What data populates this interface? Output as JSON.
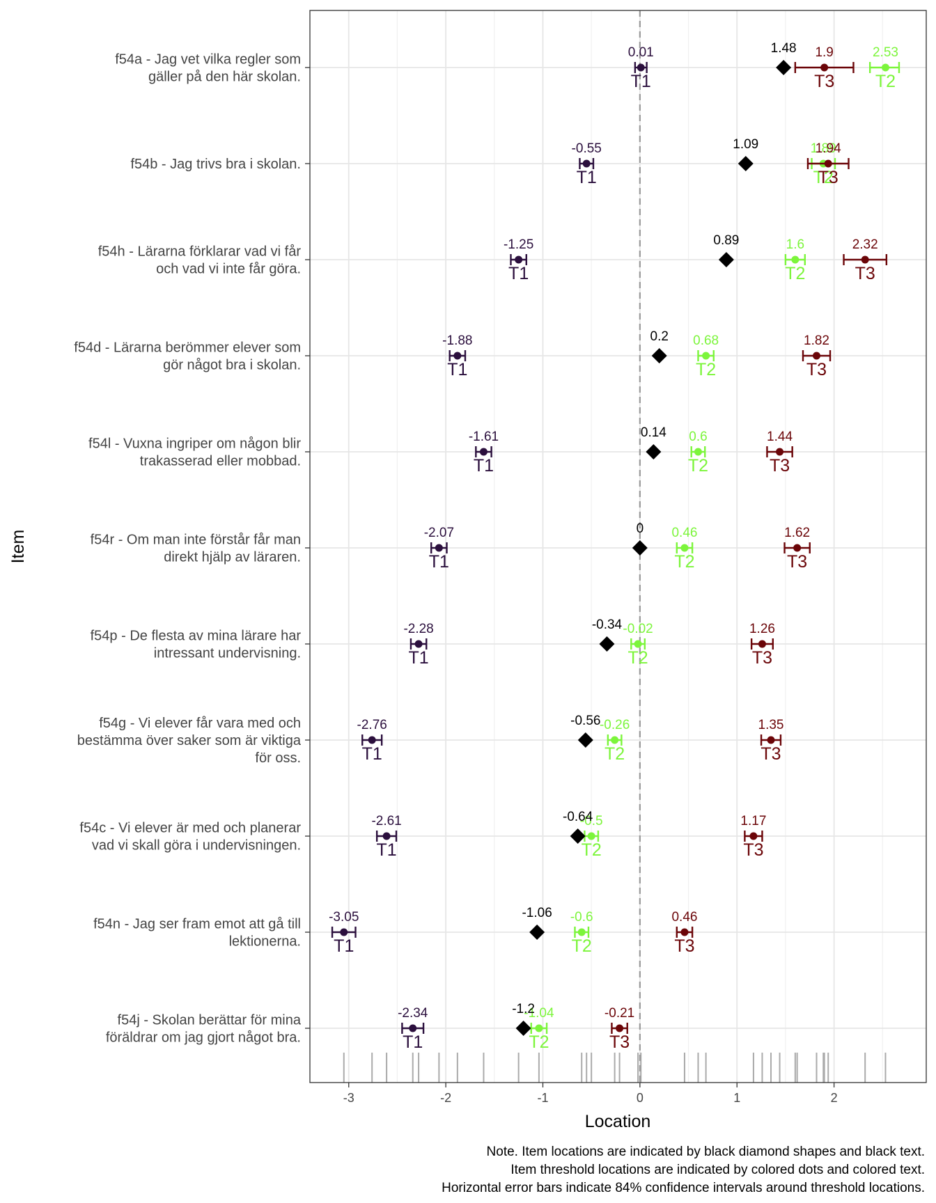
{
  "chart_data": {
    "type": "scatter",
    "xlabel": "Location",
    "ylabel": "Item",
    "xlim": [
      -3.4,
      2.95
    ],
    "x_ticks": [
      -3,
      -2,
      -1,
      0,
      1,
      2
    ],
    "grid": true,
    "reference_line": 0,
    "colors": {
      "T1": "#2b0f3d",
      "T2": "#7cf53b",
      "T3": "#6b0508",
      "item": "#000000"
    },
    "items": [
      {
        "label": [
          "f54a - Jag vet vilka regler som",
          "gäller på den här skolan."
        ],
        "location": 1.48,
        "thresholds": [
          {
            "name": "T1",
            "value": 0.01,
            "ci": [
              -0.05,
              0.07
            ]
          },
          {
            "name": "T2",
            "value": 2.53,
            "ci": [
              2.37,
              2.67
            ]
          },
          {
            "name": "T3",
            "value": 1.9,
            "ci": [
              1.6,
              2.2
            ]
          }
        ]
      },
      {
        "label": [
          "f54b - Jag trivs bra i skolan."
        ],
        "location": 1.09,
        "thresholds": [
          {
            "name": "T1",
            "value": -0.55,
            "ci": [
              -0.62,
              -0.48
            ]
          },
          {
            "name": "T2",
            "value": 1.89,
            "ci": [
              1.77,
              2.01
            ]
          },
          {
            "name": "T3",
            "value": 1.94,
            "ci": [
              1.73,
              2.15
            ]
          }
        ]
      },
      {
        "label": [
          "f54h - Lärarna förklarar vad vi får",
          "och vad vi inte får göra."
        ],
        "location": 0.89,
        "thresholds": [
          {
            "name": "T1",
            "value": -1.25,
            "ci": [
              -1.33,
              -1.17
            ]
          },
          {
            "name": "T2",
            "value": 1.6,
            "ci": [
              1.5,
              1.7
            ]
          },
          {
            "name": "T3",
            "value": 2.32,
            "ci": [
              2.1,
              2.54
            ]
          }
        ]
      },
      {
        "label": [
          "f54d - Lärarna berömmer elever som",
          "gör något bra i skolan."
        ],
        "location": 0.2,
        "thresholds": [
          {
            "name": "T1",
            "value": -1.88,
            "ci": [
              -1.96,
              -1.8
            ]
          },
          {
            "name": "T2",
            "value": 0.68,
            "ci": [
              0.6,
              0.76
            ]
          },
          {
            "name": "T3",
            "value": 1.82,
            "ci": [
              1.68,
              1.96
            ]
          }
        ]
      },
      {
        "label": [
          "f54l - Vuxna ingriper om någon blir",
          "trakasserad eller mobbad."
        ],
        "location": 0.14,
        "thresholds": [
          {
            "name": "T1",
            "value": -1.61,
            "ci": [
              -1.69,
              -1.53
            ]
          },
          {
            "name": "T2",
            "value": 0.6,
            "ci": [
              0.53,
              0.67
            ]
          },
          {
            "name": "T3",
            "value": 1.44,
            "ci": [
              1.31,
              1.57
            ]
          }
        ]
      },
      {
        "label": [
          "f54r - Om man inte förstår får man",
          "direkt hjälp av läraren."
        ],
        "location": 0,
        "thresholds": [
          {
            "name": "T1",
            "value": -2.07,
            "ci": [
              -2.15,
              -1.99
            ]
          },
          {
            "name": "T2",
            "value": 0.46,
            "ci": [
              0.38,
              0.54
            ]
          },
          {
            "name": "T3",
            "value": 1.62,
            "ci": [
              1.49,
              1.75
            ]
          }
        ]
      },
      {
        "label": [
          "f54p - De flesta av mina lärare har",
          "intressant undervisning."
        ],
        "location": -0.34,
        "thresholds": [
          {
            "name": "T1",
            "value": -2.28,
            "ci": [
              -2.36,
              -2.2
            ]
          },
          {
            "name": "T2",
            "value": -0.02,
            "ci": [
              -0.09,
              0.05
            ]
          },
          {
            "name": "T3",
            "value": 1.26,
            "ci": [
              1.15,
              1.37
            ]
          }
        ]
      },
      {
        "label": [
          "f54g - Vi elever får vara med och",
          "bestämma över saker som är viktiga",
          "för oss."
        ],
        "location": -0.56,
        "thresholds": [
          {
            "name": "T1",
            "value": -2.76,
            "ci": [
              -2.86,
              -2.66
            ]
          },
          {
            "name": "T2",
            "value": -0.26,
            "ci": [
              -0.33,
              -0.19
            ]
          },
          {
            "name": "T3",
            "value": 1.35,
            "ci": [
              1.25,
              1.45
            ]
          }
        ]
      },
      {
        "label": [
          "f54c - Vi elever är med och planerar",
          "vad vi skall göra i undervisningen."
        ],
        "location": -0.64,
        "thresholds": [
          {
            "name": "T1",
            "value": -2.61,
            "ci": [
              -2.71,
              -2.51
            ]
          },
          {
            "name": "T2",
            "value": -0.5,
            "ci": [
              -0.57,
              -0.43
            ]
          },
          {
            "name": "T3",
            "value": 1.17,
            "ci": [
              1.08,
              1.26
            ]
          }
        ]
      },
      {
        "label": [
          "f54n - Jag ser fram emot att gå till",
          "lektionerna."
        ],
        "location": -1.06,
        "thresholds": [
          {
            "name": "T1",
            "value": -3.05,
            "ci": [
              -3.17,
              -2.93
            ]
          },
          {
            "name": "T2",
            "value": -0.6,
            "ci": [
              -0.67,
              -0.53
            ]
          },
          {
            "name": "T3",
            "value": 0.46,
            "ci": [
              0.38,
              0.54
            ]
          }
        ]
      },
      {
        "label": [
          "f54j - Skolan berättar för mina",
          "föräldrar om jag gjort något bra."
        ],
        "location": -1.2,
        "thresholds": [
          {
            "name": "T1",
            "value": -2.34,
            "ci": [
              -2.45,
              -2.23
            ]
          },
          {
            "name": "T2",
            "value": -1.04,
            "ci": [
              -1.12,
              -0.96
            ]
          },
          {
            "name": "T3",
            "value": -0.21,
            "ci": [
              -0.29,
              -0.13
            ]
          }
        ]
      }
    ],
    "rug": [
      -3.05,
      -2.76,
      -2.61,
      -2.34,
      -2.28,
      -2.07,
      -1.88,
      -1.61,
      -1.25,
      -1.04,
      -0.6,
      -0.55,
      -0.5,
      -0.26,
      -0.21,
      -0.02,
      0.01,
      0.46,
      0.46,
      0.6,
      0.68,
      1.17,
      1.26,
      1.35,
      1.44,
      1.6,
      1.62,
      1.82,
      1.89,
      1.9,
      1.94,
      2.32,
      2.53
    ]
  },
  "note_lines": [
    "Note. Item locations are indicated by black diamond shapes and black text.",
    "Item threshold locations are indicated by colored dots and colored text.",
    "Horizontal error bars indicate 84% confidence intervals around threshold locations."
  ]
}
